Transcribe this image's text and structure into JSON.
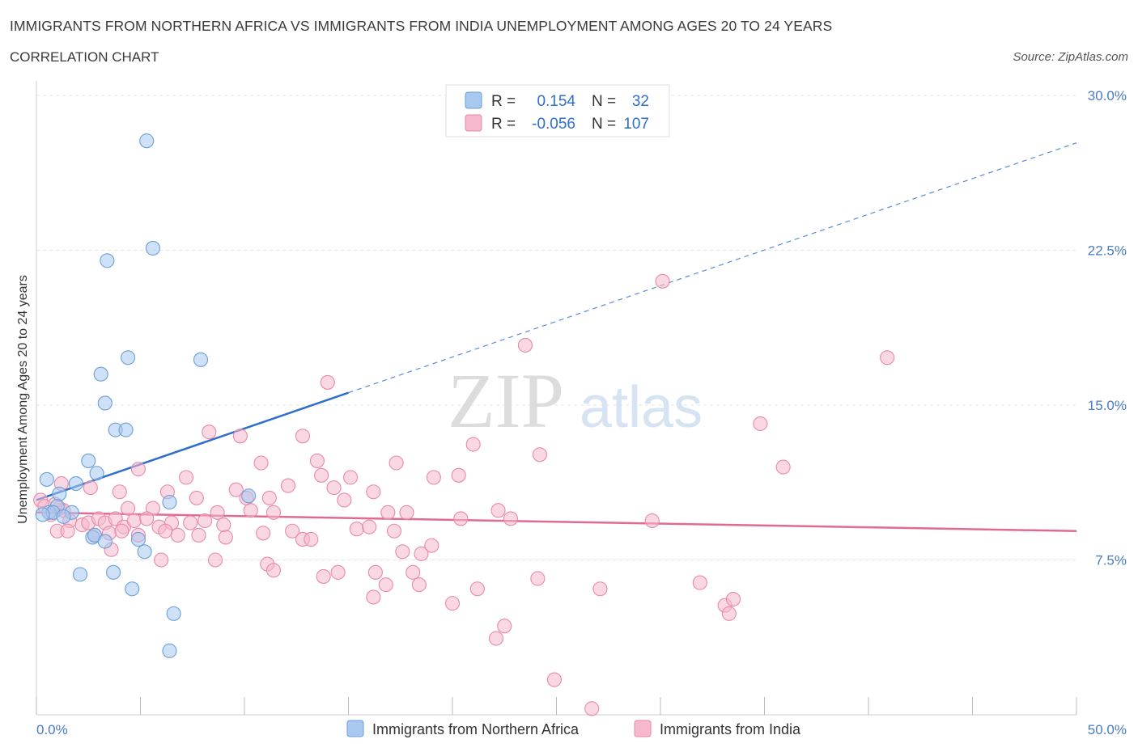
{
  "header": {
    "title": "IMMIGRANTS FROM NORTHERN AFRICA VS IMMIGRANTS FROM INDIA UNEMPLOYMENT AMONG AGES 20 TO 24 YEARS",
    "subtitle": "CORRELATION CHART",
    "source": "Source: ZipAtlas.com"
  },
  "watermark": {
    "zip": "ZIP",
    "atlas": "atlas"
  },
  "legend": {
    "rows": [
      {
        "r_label": "R =",
        "r_value": "0.154",
        "n_label": "N =",
        "n_value": "32",
        "color": "#a8c8f0"
      },
      {
        "r_label": "R =",
        "r_value": "-0.056",
        "n_label": "N =",
        "n_value": "107",
        "color": "#f5b8cc"
      }
    ]
  },
  "colors": {
    "blue_fill": "#a8c8f0",
    "blue_stroke": "#6a9fd8",
    "blue_line": "#2f6fcc",
    "pink_fill": "#f5b8cc",
    "pink_stroke": "#e889a8",
    "pink_line": "#e06a96"
  },
  "chart_data": {
    "type": "scatter",
    "xlabel": "",
    "ylabel": "Unemployment Among Ages 20 to 24 years",
    "xlim": [
      0,
      50
    ],
    "ylim": [
      0,
      30
    ],
    "x_tick_labels": [
      "0.0%",
      "50.0%"
    ],
    "y_ticks": [
      7.5,
      15,
      22.5,
      30
    ],
    "y_tick_labels": [
      "7.5%",
      "15.0%",
      "22.5%",
      "30.0%"
    ],
    "grid": true,
    "legend_position": "top-center",
    "series": [
      {
        "name": "Immigrants from Northern Africa",
        "color": "#a8c8f0",
        "trend": {
          "x": [
            0,
            15
          ],
          "y": [
            10.4,
            15.6
          ],
          "extend_to": [
            50,
            27.7
          ]
        },
        "points": [
          [
            5.3,
            27.8
          ],
          [
            5.6,
            22.6
          ],
          [
            3.4,
            22.0
          ],
          [
            4.4,
            17.3
          ],
          [
            7.9,
            17.2
          ],
          [
            3.1,
            16.5
          ],
          [
            3.3,
            15.1
          ],
          [
            3.8,
            13.8
          ],
          [
            4.3,
            13.8
          ],
          [
            2.5,
            12.3
          ],
          [
            0.5,
            11.4
          ],
          [
            2.9,
            11.7
          ],
          [
            1.9,
            11.2
          ],
          [
            1.1,
            10.7
          ],
          [
            1.0,
            10.1
          ],
          [
            6.4,
            10.3
          ],
          [
            10.2,
            10.6
          ],
          [
            0.6,
            9.8
          ],
          [
            0.8,
            9.8
          ],
          [
            1.7,
            9.8
          ],
          [
            0.3,
            9.7
          ],
          [
            1.3,
            9.6
          ],
          [
            2.7,
            8.6
          ],
          [
            2.8,
            8.7
          ],
          [
            4.9,
            8.5
          ],
          [
            3.3,
            8.4
          ],
          [
            5.2,
            7.9
          ],
          [
            2.1,
            6.8
          ],
          [
            3.7,
            6.9
          ],
          [
            4.6,
            6.1
          ],
          [
            6.6,
            4.9
          ],
          [
            6.4,
            3.1
          ]
        ]
      },
      {
        "name": "Immigrants from India",
        "color": "#f5b8cc",
        "trend": {
          "x": [
            0,
            50
          ],
          "y": [
            9.8,
            8.9
          ]
        },
        "points": [
          [
            30.1,
            21.0
          ],
          [
            23.5,
            17.9
          ],
          [
            40.9,
            17.3
          ],
          [
            14.0,
            16.1
          ],
          [
            34.8,
            14.1
          ],
          [
            8.3,
            13.7
          ],
          [
            9.8,
            13.5
          ],
          [
            12.8,
            13.5
          ],
          [
            21.0,
            13.1
          ],
          [
            24.2,
            12.6
          ],
          [
            35.9,
            12.0
          ],
          [
            4.9,
            11.9
          ],
          [
            10.8,
            12.2
          ],
          [
            13.5,
            12.3
          ],
          [
            17.3,
            12.2
          ],
          [
            7.2,
            11.5
          ],
          [
            12.1,
            11.1
          ],
          [
            13.7,
            11.6
          ],
          [
            15.1,
            11.5
          ],
          [
            19.1,
            11.5
          ],
          [
            20.3,
            11.6
          ],
          [
            2.6,
            11.0
          ],
          [
            4.0,
            10.8
          ],
          [
            6.3,
            10.8
          ],
          [
            9.6,
            10.9
          ],
          [
            7.7,
            10.5
          ],
          [
            10.1,
            10.5
          ],
          [
            11.2,
            10.5
          ],
          [
            14.3,
            11.0
          ],
          [
            14.8,
            10.4
          ],
          [
            16.2,
            10.8
          ],
          [
            4.4,
            10.0
          ],
          [
            5.6,
            10.0
          ],
          [
            8.7,
            9.8
          ],
          [
            10.3,
            9.9
          ],
          [
            11.4,
            9.8
          ],
          [
            16.9,
            9.8
          ],
          [
            17.8,
            9.8
          ],
          [
            22.2,
            9.9
          ],
          [
            22.8,
            9.5
          ],
          [
            29.6,
            9.4
          ],
          [
            0.2,
            10.4
          ],
          [
            0.4,
            10.1
          ],
          [
            1.1,
            10.0
          ],
          [
            1.3,
            9.9
          ],
          [
            0.7,
            9.7
          ],
          [
            1.6,
            9.4
          ],
          [
            2.2,
            9.2
          ],
          [
            2.5,
            9.3
          ],
          [
            3.0,
            9.5
          ],
          [
            3.3,
            9.3
          ],
          [
            3.8,
            9.5
          ],
          [
            4.2,
            9.1
          ],
          [
            4.7,
            9.4
          ],
          [
            5.3,
            9.5
          ],
          [
            5.9,
            9.1
          ],
          [
            6.5,
            9.3
          ],
          [
            7.4,
            9.3
          ],
          [
            8.1,
            9.4
          ],
          [
            9.0,
            9.2
          ],
          [
            1.0,
            8.9
          ],
          [
            1.5,
            8.9
          ],
          [
            2.8,
            8.7
          ],
          [
            3.5,
            8.8
          ],
          [
            4.1,
            8.9
          ],
          [
            4.9,
            8.7
          ],
          [
            6.2,
            8.9
          ],
          [
            6.8,
            8.7
          ],
          [
            7.8,
            8.7
          ],
          [
            9.1,
            8.6
          ],
          [
            10.9,
            8.8
          ],
          [
            12.3,
            8.9
          ],
          [
            12.8,
            8.5
          ],
          [
            13.2,
            8.5
          ],
          [
            15.4,
            9.0
          ],
          [
            16.0,
            9.1
          ],
          [
            17.2,
            8.9
          ],
          [
            19.0,
            8.2
          ],
          [
            20.4,
            9.5
          ],
          [
            3.6,
            8.0
          ],
          [
            17.6,
            7.9
          ],
          [
            18.5,
            7.8
          ],
          [
            6.0,
            7.5
          ],
          [
            8.6,
            7.5
          ],
          [
            11.1,
            7.3
          ],
          [
            11.4,
            7.0
          ],
          [
            13.8,
            6.7
          ],
          [
            14.5,
            6.9
          ],
          [
            16.3,
            6.9
          ],
          [
            18.1,
            6.9
          ],
          [
            16.8,
            6.3
          ],
          [
            18.4,
            6.3
          ],
          [
            21.2,
            6.1
          ],
          [
            24.1,
            6.6
          ],
          [
            27.1,
            6.1
          ],
          [
            31.9,
            6.4
          ],
          [
            33.1,
            5.3
          ],
          [
            33.5,
            5.6
          ],
          [
            33.3,
            4.9
          ],
          [
            16.2,
            5.7
          ],
          [
            20.0,
            5.4
          ],
          [
            22.1,
            3.7
          ],
          [
            22.5,
            4.3
          ],
          [
            24.9,
            1.7
          ],
          [
            26.7,
            0.3
          ],
          [
            1.2,
            11.2
          ],
          [
            0.9,
            10.2
          ]
        ]
      }
    ]
  },
  "bottom_legend": {
    "items": [
      {
        "label": "Immigrants from Northern Africa",
        "color": "#a8c8f0"
      },
      {
        "label": "Immigrants from India",
        "color": "#f5b8cc"
      }
    ]
  }
}
